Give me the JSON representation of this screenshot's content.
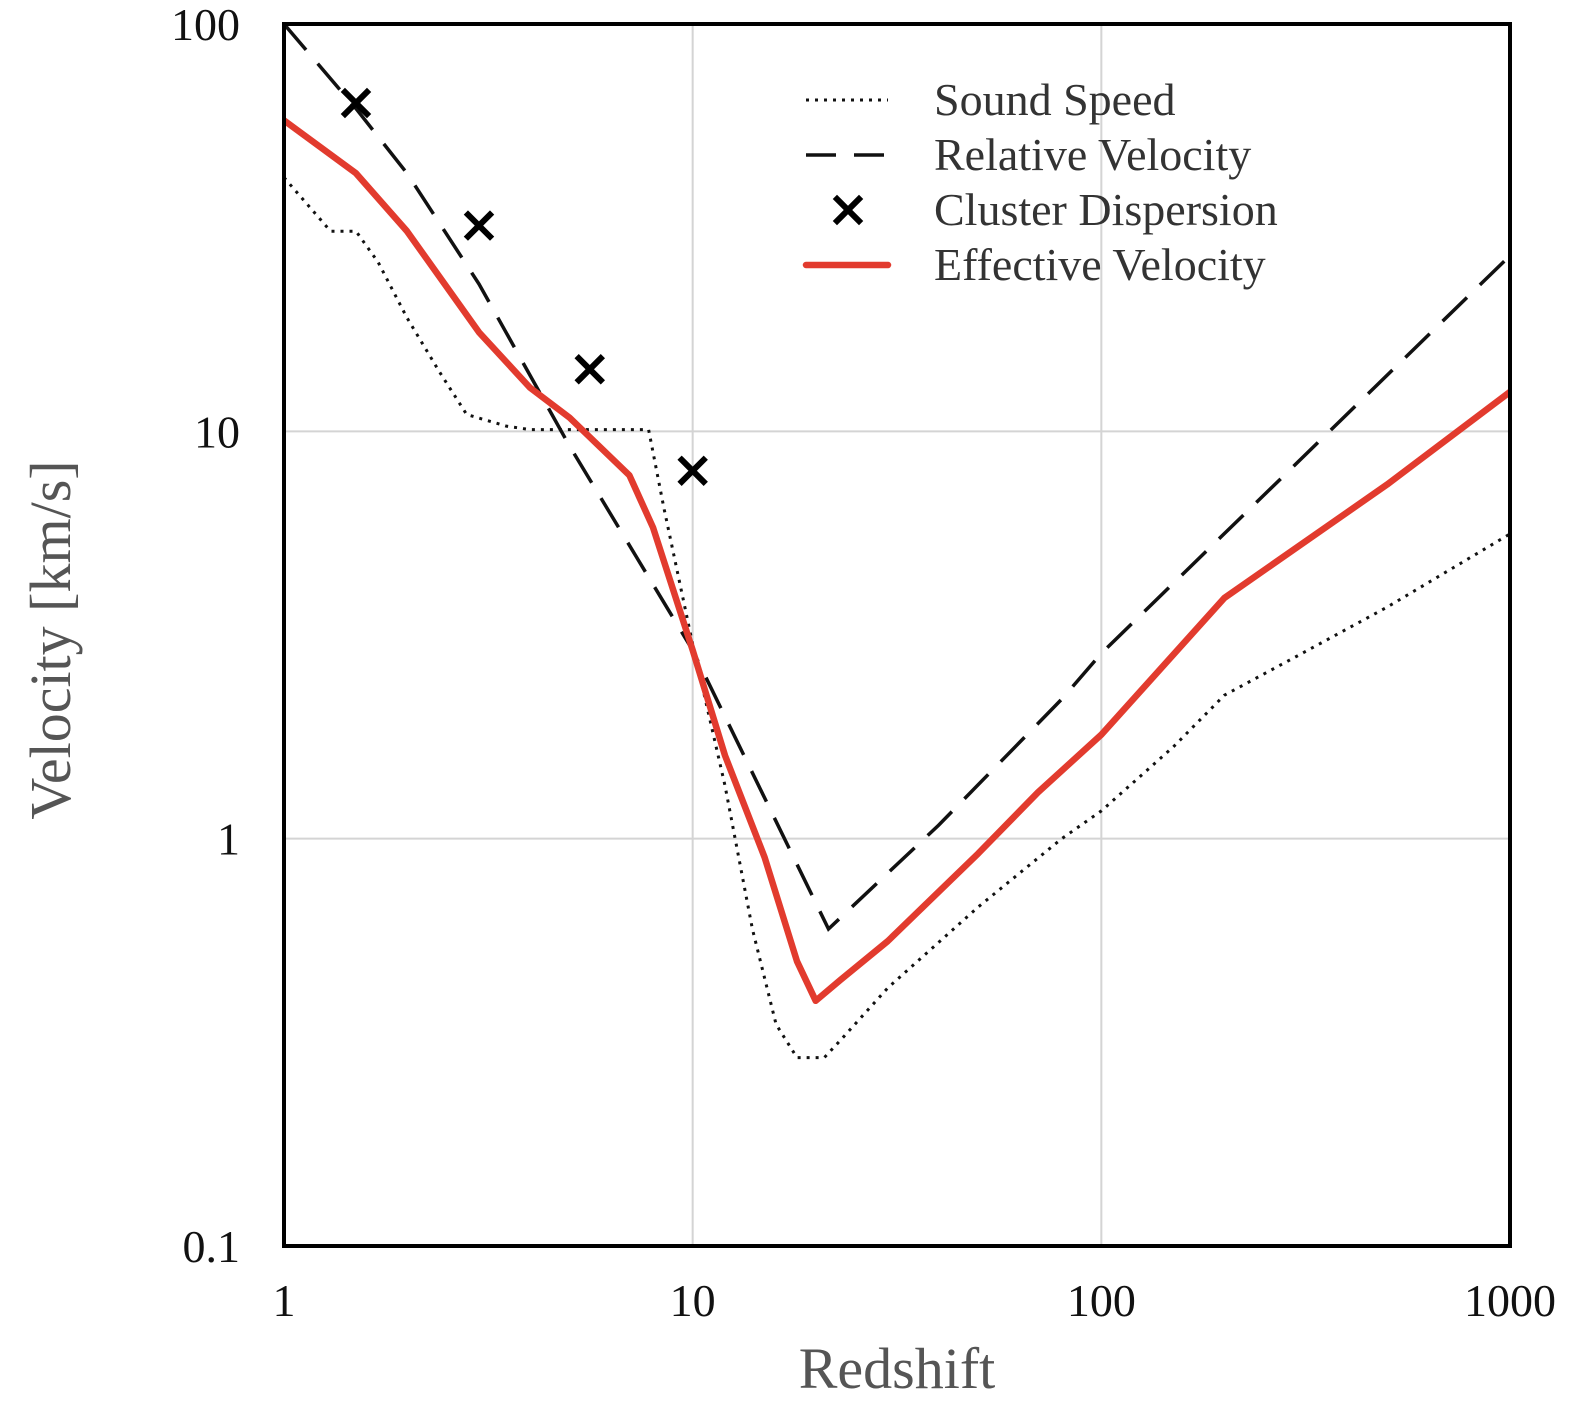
{
  "chart_data": {
    "type": "line",
    "xscale": "log",
    "yscale": "log",
    "xlabel": "Redshift",
    "ylabel": "Velocity [km/s]",
    "xlim": [
      1,
      1000
    ],
    "ylim": [
      0.1,
      100
    ],
    "xticks": [
      1,
      10,
      100,
      1000
    ],
    "xtick_labels": [
      "1",
      "10",
      "100",
      "1000"
    ],
    "yticks": [
      0.1,
      1,
      10,
      100
    ],
    "ytick_labels": [
      "0.1",
      "1",
      "10",
      "100"
    ],
    "grid": true,
    "legend_position": "top-right",
    "series": [
      {
        "name": "Sound Speed",
        "style": "dotted",
        "color": "#111111",
        "x": [
          1,
          1.3,
          1.5,
          1.7,
          2,
          2.4,
          2.8,
          3.5,
          4,
          5,
          6,
          7,
          7.8,
          8.5,
          10,
          12,
          14,
          16,
          18,
          20,
          21,
          23,
          30,
          50,
          80,
          100,
          150,
          200,
          300,
          500,
          1000
        ],
        "y": [
          42,
          31,
          31,
          26,
          19,
          14,
          11,
          10.3,
          10.1,
          10.1,
          10.1,
          10.1,
          10.1,
          6.5,
          3,
          1.35,
          0.6,
          0.35,
          0.29,
          0.29,
          0.29,
          0.32,
          0.43,
          0.68,
          1.0,
          1.17,
          1.68,
          2.25,
          2.8,
          3.7,
          5.6
        ]
      },
      {
        "name": "Relative Velocity",
        "style": "dashed",
        "color": "#111111",
        "x": [
          1,
          1.5,
          2,
          3,
          5,
          10,
          21.5,
          40,
          80,
          100,
          1000
        ],
        "y": [
          100,
          62,
          43,
          23,
          9.2,
          2.9,
          0.6,
          1.08,
          2.2,
          2.85,
          27
        ]
      },
      {
        "name": "Effective Velocity",
        "style": "solid",
        "color": "#e23b2e",
        "x": [
          1,
          1.5,
          2,
          3,
          4,
          5,
          7,
          8,
          10,
          12,
          15,
          18,
          20,
          23,
          30,
          50,
          70,
          100,
          200,
          500,
          1000
        ],
        "y": [
          58,
          43,
          31,
          17.5,
          12.8,
          10.8,
          7.8,
          5.8,
          2.9,
          1.6,
          0.9,
          0.5,
          0.4,
          0.45,
          0.56,
          0.92,
          1.3,
          1.8,
          3.9,
          7.4,
          12.5
        ]
      },
      {
        "name": "Cluster Dispersion",
        "style": "markers",
        "marker": "x",
        "color": "#000000",
        "x": [
          1.5,
          3,
          5.6,
          10
        ],
        "y": [
          64,
          32,
          14.2,
          8
        ]
      }
    ]
  }
}
